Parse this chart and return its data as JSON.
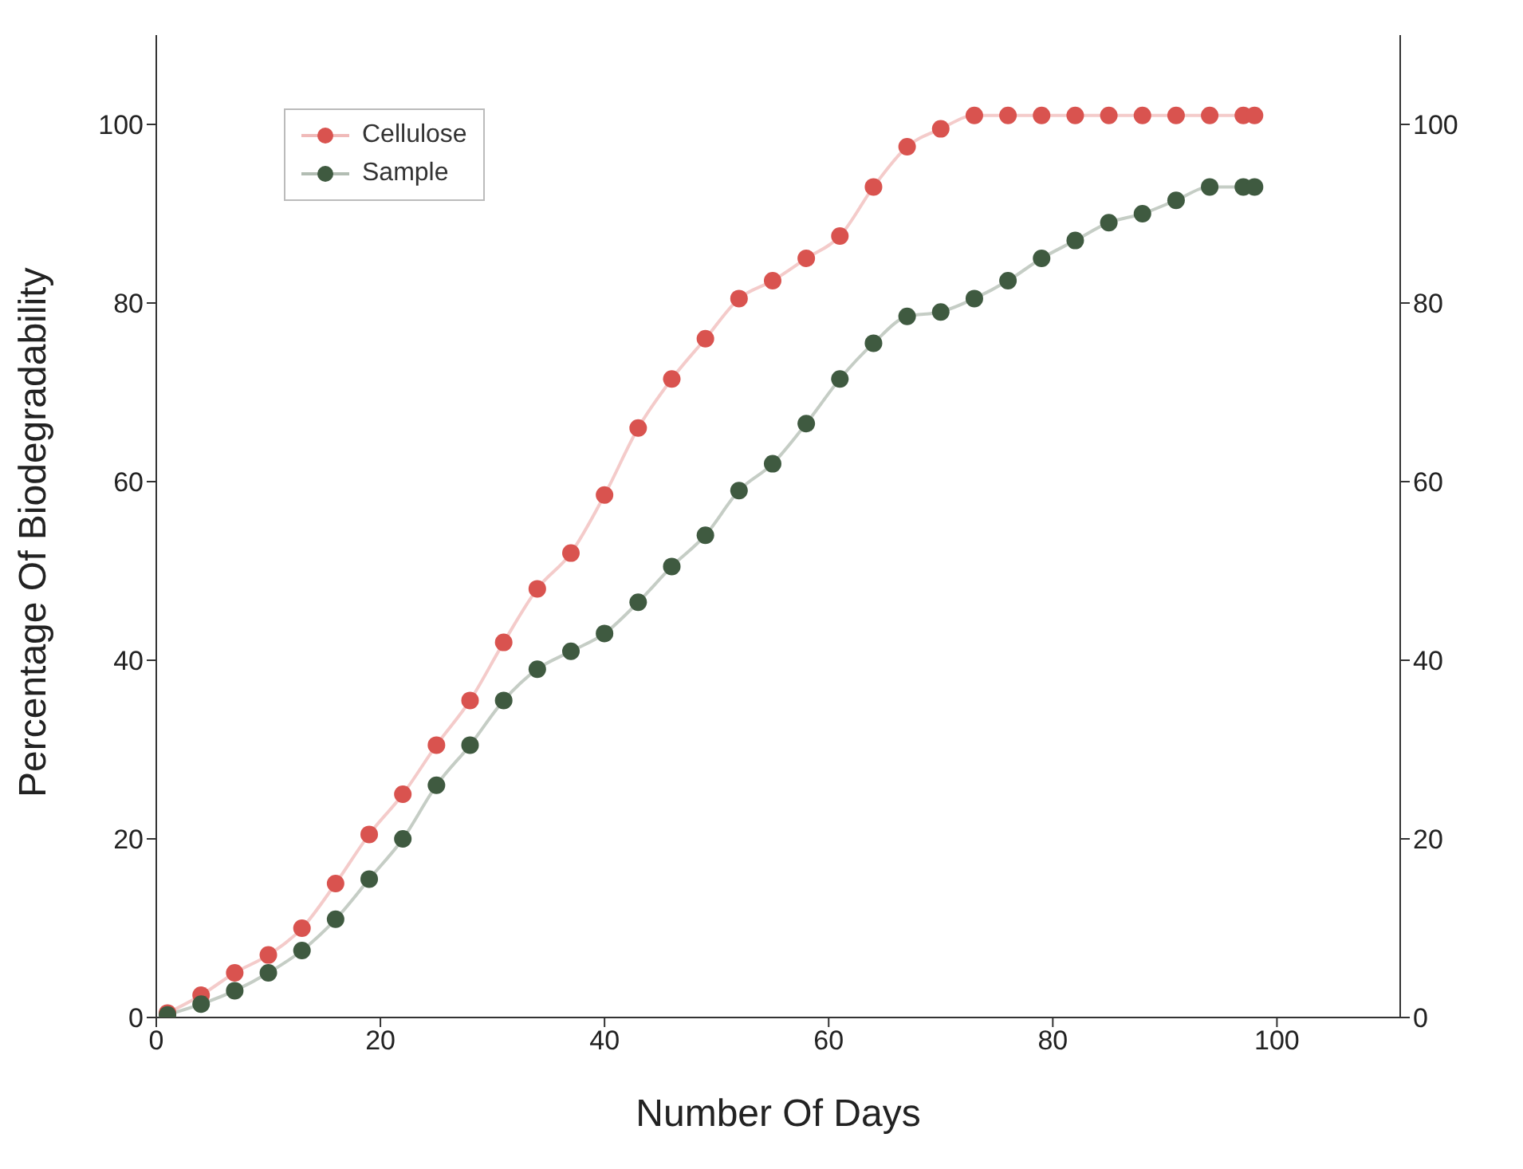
{
  "chart_data": {
    "type": "line",
    "xlabel": "Number Of Days",
    "ylabel": "Percentage Of Biodegradability",
    "x": [
      1,
      4,
      7,
      10,
      13,
      16,
      19,
      22,
      25,
      28,
      31,
      34,
      37,
      40,
      43,
      46,
      49,
      52,
      55,
      58,
      61,
      64,
      67,
      70,
      73,
      76,
      79,
      82,
      85,
      88,
      91,
      94,
      97,
      98
    ],
    "series": [
      {
        "name": "Cellulose",
        "color": "#d9534f",
        "values": [
          0.5,
          2.5,
          5,
          7,
          10,
          15,
          20.5,
          25,
          30.5,
          35.5,
          42,
          48,
          52,
          58.5,
          66,
          71.5,
          76,
          80.5,
          82.5,
          85,
          87.5,
          93,
          97.5,
          99.5,
          101,
          101,
          101,
          101,
          101,
          101,
          101,
          101,
          101,
          101
        ]
      },
      {
        "name": "Sample",
        "color": "#3f5a40",
        "values": [
          0.3,
          1.5,
          3,
          5,
          7.5,
          11,
          15.5,
          20,
          26,
          30.5,
          35.5,
          39,
          41,
          43,
          46.5,
          50.5,
          54,
          59,
          62,
          66.5,
          71.5,
          75.5,
          78.5,
          79,
          80.5,
          82.5,
          85,
          87,
          89,
          90,
          91.5,
          93,
          93,
          93
        ]
      }
    ],
    "xlim": [
      0,
      111
    ],
    "xticks": [
      0,
      20,
      40,
      60,
      80,
      100
    ],
    "ylim": [
      0,
      110
    ],
    "yticks": [
      0,
      20,
      40,
      60,
      80,
      100
    ],
    "y2lim": [
      0,
      110
    ],
    "y2ticks": [
      0,
      20,
      40,
      60,
      80,
      100
    ],
    "marker": "circle",
    "line_style": "solid",
    "legend": "top left",
    "grid": false
  }
}
